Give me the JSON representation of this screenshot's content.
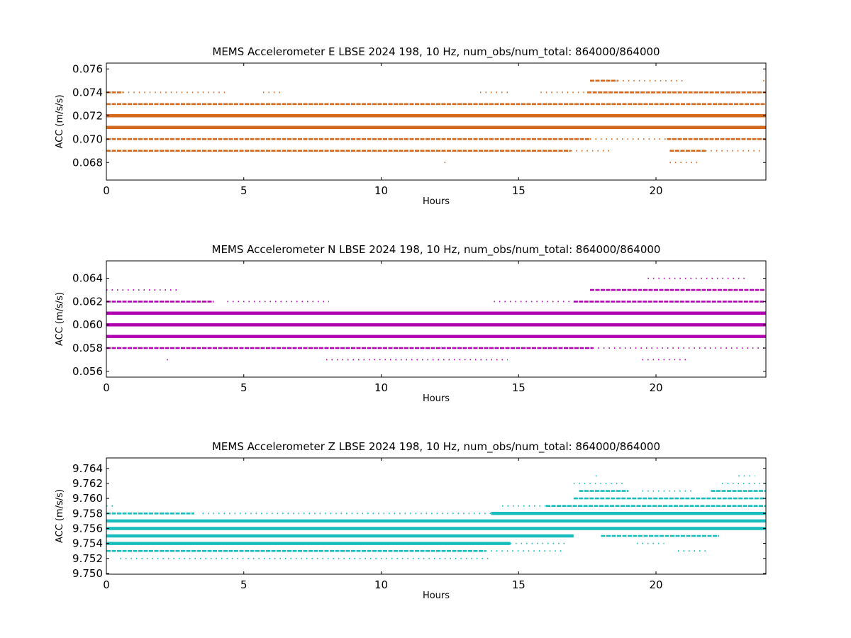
{
  "chart_data": [
    {
      "type": "scatter",
      "title": "MEMS Accelerometer E LBSE 2024 198, 10 Hz, num_obs/num_total: 864000/864000",
      "xlabel": "Hours",
      "ylabel": "ACC (m/s/s)",
      "xlim": [
        0,
        24
      ],
      "ylim": [
        0.0665,
        0.0765
      ],
      "x_ticks": [
        0,
        5,
        10,
        15,
        20
      ],
      "y_ticks": [
        0.068,
        0.07,
        0.072,
        0.074,
        0.076
      ],
      "color": "#d2691e",
      "grid": false,
      "levels": [
        {
          "y": 0.075,
          "segments": [
            {
              "x": [
                17.6,
                18.6
              ],
              "density": "dense"
            },
            {
              "x": [
                18.6,
                21.1
              ],
              "density": "sparse"
            },
            {
              "x": [
                23.9,
                23.95
              ],
              "density": "sparse"
            }
          ]
        },
        {
          "y": 0.074,
          "segments": [
            {
              "x": [
                0.0,
                0.6
              ],
              "density": "dense"
            },
            {
              "x": [
                0.6,
                4.4
              ],
              "density": "sparse"
            },
            {
              "x": [
                5.7,
                6.4
              ],
              "density": "sparse"
            },
            {
              "x": [
                13.6,
                14.7
              ],
              "density": "sparse"
            },
            {
              "x": [
                15.8,
                17.5
              ],
              "density": "sparse"
            },
            {
              "x": [
                17.5,
                24.0
              ],
              "density": "dense"
            }
          ]
        },
        {
          "y": 0.073,
          "segments": [
            {
              "x": [
                0.0,
                24.0
              ],
              "density": "dense"
            }
          ]
        },
        {
          "y": 0.072,
          "segments": [
            {
              "x": [
                0.0,
                24.0
              ],
              "density": "solid"
            }
          ]
        },
        {
          "y": 0.071,
          "segments": [
            {
              "x": [
                0.0,
                24.0
              ],
              "density": "solid"
            }
          ]
        },
        {
          "y": 0.07,
          "segments": [
            {
              "x": [
                0.0,
                17.6
              ],
              "density": "dense"
            },
            {
              "x": [
                17.6,
                20.4
              ],
              "density": "sparse"
            },
            {
              "x": [
                20.4,
                24.0
              ],
              "density": "dense"
            }
          ]
        },
        {
          "y": 0.069,
          "segments": [
            {
              "x": [
                0.0,
                16.9
              ],
              "density": "dense"
            },
            {
              "x": [
                16.9,
                18.4
              ],
              "density": "sparse"
            },
            {
              "x": [
                20.5,
                21.8
              ],
              "density": "dense"
            },
            {
              "x": [
                21.8,
                23.9
              ],
              "density": "sparse"
            }
          ]
        },
        {
          "y": 0.068,
          "segments": [
            {
              "x": [
                12.3,
                12.35
              ],
              "density": "sparse"
            },
            {
              "x": [
                20.5,
                21.5
              ],
              "density": "sparse"
            }
          ]
        }
      ]
    },
    {
      "type": "scatter",
      "title": "MEMS Accelerometer N LBSE 2024 198, 10 Hz, num_obs/num_total: 864000/864000",
      "xlabel": "Hours",
      "ylabel": "ACC (m/s/s)",
      "xlim": [
        0,
        24
      ],
      "ylim": [
        0.0555,
        0.0655
      ],
      "x_ticks": [
        0,
        5,
        10,
        15,
        20
      ],
      "y_ticks": [
        0.056,
        0.058,
        0.06,
        0.062,
        0.064
      ],
      "color": "#b000b0",
      "grid": false,
      "levels": [
        {
          "y": 0.064,
          "segments": [
            {
              "x": [
                19.7,
                23.3
              ],
              "density": "sparse"
            }
          ]
        },
        {
          "y": 0.063,
          "segments": [
            {
              "x": [
                0.0,
                2.6
              ],
              "density": "sparse"
            },
            {
              "x": [
                17.6,
                24.0
              ],
              "density": "dense"
            }
          ]
        },
        {
          "y": 0.062,
          "segments": [
            {
              "x": [
                0.0,
                3.9
              ],
              "density": "dense"
            },
            {
              "x": [
                4.4,
                8.1
              ],
              "density": "sparse"
            },
            {
              "x": [
                14.1,
                17.0
              ],
              "density": "sparse"
            },
            {
              "x": [
                17.0,
                24.0
              ],
              "density": "dense"
            }
          ]
        },
        {
          "y": 0.061,
          "segments": [
            {
              "x": [
                0.0,
                24.0
              ],
              "density": "solid"
            }
          ]
        },
        {
          "y": 0.06,
          "segments": [
            {
              "x": [
                0.0,
                24.0
              ],
              "density": "solid"
            }
          ]
        },
        {
          "y": 0.059,
          "segments": [
            {
              "x": [
                0.0,
                24.0
              ],
              "density": "solid"
            }
          ]
        },
        {
          "y": 0.058,
          "segments": [
            {
              "x": [
                0.0,
                17.7
              ],
              "density": "dense"
            },
            {
              "x": [
                17.7,
                24.0
              ],
              "density": "sparse"
            }
          ]
        },
        {
          "y": 0.057,
          "segments": [
            {
              "x": [
                2.2,
                2.25
              ],
              "density": "sparse"
            },
            {
              "x": [
                8.0,
                14.6
              ],
              "density": "sparse"
            },
            {
              "x": [
                19.5,
                21.1
              ],
              "density": "sparse"
            }
          ]
        }
      ]
    },
    {
      "type": "scatter",
      "title": "MEMS Accelerometer Z LBSE 2024 198, 10 Hz, num_obs/num_total: 864000/864000",
      "xlabel": "Hours",
      "ylabel": "ACC (m/s/s)",
      "xlim": [
        0,
        24
      ],
      "ylim": [
        9.7499,
        9.7654
      ],
      "x_ticks": [
        0,
        5,
        10,
        15,
        20
      ],
      "y_ticks": [
        9.75,
        9.752,
        9.754,
        9.756,
        9.758,
        9.76,
        9.762,
        9.764
      ],
      "color": "#17bcbc",
      "grid": false,
      "levels": [
        {
          "y": 9.763,
          "segments": [
            {
              "x": [
                17.8,
                18.0
              ],
              "density": "sparse"
            },
            {
              "x": [
                23.0,
                23.6
              ],
              "density": "sparse"
            }
          ]
        },
        {
          "y": 9.762,
          "segments": [
            {
              "x": [
                17.0,
                18.8
              ],
              "density": "sparse"
            },
            {
              "x": [
                22.4,
                24.0
              ],
              "density": "sparse"
            }
          ]
        },
        {
          "y": 9.761,
          "segments": [
            {
              "x": [
                17.2,
                19.0
              ],
              "density": "dense"
            },
            {
              "x": [
                19.5,
                21.3
              ],
              "density": "sparse"
            },
            {
              "x": [
                22.0,
                24.0
              ],
              "density": "dense"
            }
          ]
        },
        {
          "y": 9.76,
          "segments": [
            {
              "x": [
                17.0,
                24.0
              ],
              "density": "dense"
            }
          ]
        },
        {
          "y": 9.759,
          "segments": [
            {
              "x": [
                0.0,
                0.3
              ],
              "density": "sparse"
            },
            {
              "x": [
                14.4,
                16.0
              ],
              "density": "sparse"
            },
            {
              "x": [
                16.0,
                24.0
              ],
              "density": "dense"
            }
          ]
        },
        {
          "y": 9.758,
          "segments": [
            {
              "x": [
                0.0,
                3.2
              ],
              "density": "dense"
            },
            {
              "x": [
                3.5,
                14.0
              ],
              "density": "sparse"
            },
            {
              "x": [
                14.0,
                24.0
              ],
              "density": "solid"
            }
          ]
        },
        {
          "y": 9.757,
          "segments": [
            {
              "x": [
                0.0,
                24.0
              ],
              "density": "solid"
            }
          ]
        },
        {
          "y": 9.756,
          "segments": [
            {
              "x": [
                0.0,
                24.0
              ],
              "density": "solid"
            }
          ]
        },
        {
          "y": 9.755,
          "segments": [
            {
              "x": [
                0.0,
                17.0
              ],
              "density": "solid"
            },
            {
              "x": [
                18.0,
                22.3
              ],
              "density": "dense"
            }
          ]
        },
        {
          "y": 9.754,
          "segments": [
            {
              "x": [
                0.0,
                14.7
              ],
              "density": "solid"
            },
            {
              "x": [
                14.7,
                16.8
              ],
              "density": "sparse"
            },
            {
              "x": [
                19.3,
                20.3
              ],
              "density": "sparse"
            }
          ]
        },
        {
          "y": 9.753,
          "segments": [
            {
              "x": [
                0.0,
                13.8
              ],
              "density": "dense"
            },
            {
              "x": [
                13.8,
                16.7
              ],
              "density": "sparse"
            },
            {
              "x": [
                20.8,
                21.8
              ],
              "density": "sparse"
            }
          ]
        },
        {
          "y": 9.752,
          "segments": [
            {
              "x": [
                0.5,
                14.0
              ],
              "density": "sparse"
            }
          ]
        }
      ]
    }
  ]
}
